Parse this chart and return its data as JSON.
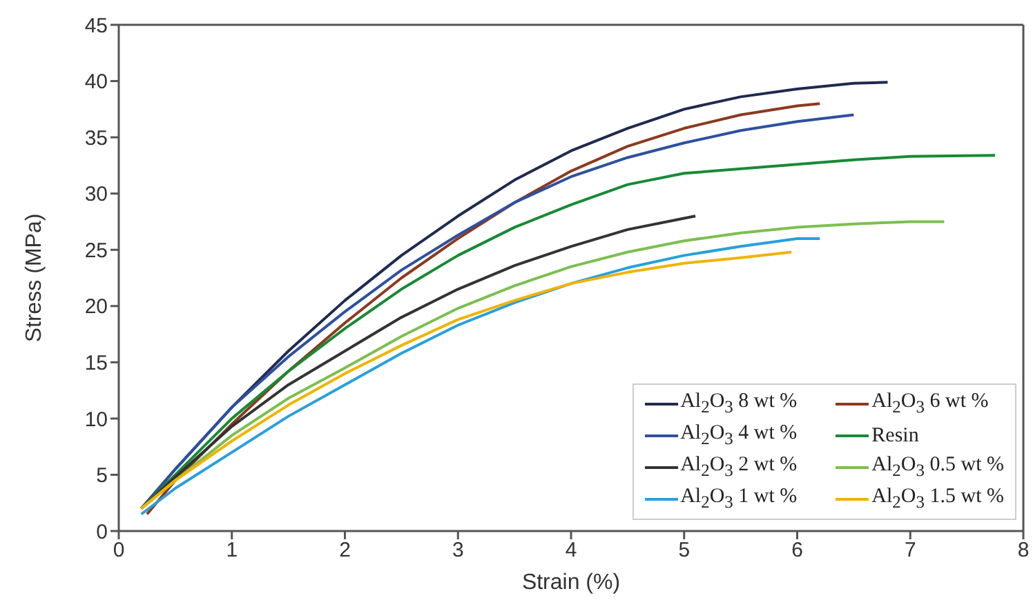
{
  "chart_data": {
    "type": "line",
    "xlabel": "Strain (%)",
    "ylabel": "Stress (MPa)",
    "xlim": [
      0,
      8
    ],
    "xticks": [
      0,
      1,
      2,
      3,
      4,
      5,
      6,
      7,
      8
    ],
    "ylim": [
      0,
      45
    ],
    "yticks": [
      0,
      5,
      10,
      15,
      20,
      25,
      30,
      35,
      40,
      45
    ],
    "grid": false,
    "legend": "bottom right",
    "marker": "none",
    "line_style": "solid",
    "series": [
      {
        "name": "Al$_{2}$O$_{3}$ 8 wt %",
        "color": "#1f2a4f",
        "x": [
          0.2,
          0.5,
          1,
          1.5,
          2,
          2.5,
          3,
          3.5,
          4,
          4.5,
          5,
          5.5,
          6,
          6.5,
          6.8
        ],
        "values": [
          2,
          5.5,
          11,
          16,
          20.5,
          24.5,
          28,
          31.2,
          33.8,
          35.8,
          37.5,
          38.6,
          39.3,
          39.8,
          39.9
        ]
      },
      {
        "name": "Al$_{2}$O$_{3}$ 6 wt %",
        "color": "#8b3a1e",
        "x": [
          0.25,
          0.5,
          1,
          1.5,
          2,
          2.5,
          3,
          3.5,
          4,
          4.5,
          5,
          5.5,
          6,
          6.2
        ],
        "values": [
          1.5,
          4.5,
          9.5,
          14.2,
          18.5,
          22.5,
          26,
          29.2,
          32,
          34.2,
          35.8,
          37,
          37.8,
          38
        ]
      },
      {
        "name": "Al$_{2}$O$_{3}$ 4 wt %",
        "color": "#2e50a0",
        "x": [
          0.2,
          0.5,
          1,
          1.5,
          2,
          2.5,
          3,
          3.5,
          4,
          4.5,
          5,
          5.5,
          6,
          6.5
        ],
        "values": [
          2,
          5.5,
          11,
          15.5,
          19.5,
          23.2,
          26.3,
          29.2,
          31.5,
          33.2,
          34.5,
          35.6,
          36.4,
          37
        ]
      },
      {
        "name": "Resin",
        "color": "#178a35",
        "x": [
          0.2,
          0.5,
          1,
          1.5,
          2,
          2.5,
          3,
          3.5,
          4,
          4.5,
          5,
          5.5,
          6,
          6.5,
          7,
          7.75
        ],
        "values": [
          2,
          5,
          10,
          14.2,
          18,
          21.5,
          24.5,
          27,
          29,
          30.8,
          31.8,
          32.2,
          32.6,
          33,
          33.3,
          33.4
        ]
      },
      {
        "name": "Al$_{2}$O$_{3}$ 2 wt %",
        "color": "#333333",
        "x": [
          0.2,
          0.5,
          1,
          1.5,
          2,
          2.5,
          3,
          3.5,
          4,
          4.5,
          5,
          5.1
        ],
        "values": [
          2,
          4.8,
          9.3,
          13,
          16,
          19,
          21.5,
          23.6,
          25.3,
          26.8,
          27.8,
          28
        ]
      },
      {
        "name": "Al$_{2}$O$_{3}$ 0.5 wt %",
        "color": "#7cbf50",
        "x": [
          0.2,
          0.5,
          1,
          1.5,
          2,
          2.5,
          3,
          3.5,
          4,
          4.5,
          5,
          5.5,
          6,
          6.5,
          7,
          7.3
        ],
        "values": [
          2,
          4.5,
          8.5,
          11.8,
          14.5,
          17.3,
          19.8,
          21.8,
          23.5,
          24.8,
          25.8,
          26.5,
          27,
          27.3,
          27.5,
          27.5
        ]
      },
      {
        "name": "Al$_{2}$O$_{3}$ 1 wt %",
        "color": "#27a0dc",
        "x": [
          0.2,
          0.5,
          1,
          1.5,
          2,
          2.5,
          3,
          3.5,
          4,
          4.5,
          5,
          5.5,
          6,
          6.2
        ],
        "values": [
          1.5,
          3.8,
          7,
          10.2,
          13,
          15.8,
          18.3,
          20.3,
          22,
          23.4,
          24.5,
          25.3,
          26,
          26
        ]
      },
      {
        "name": "Al$_{2}$O$_{3}$ 1.5 wt %",
        "color": "#f0b400",
        "x": [
          0.2,
          0.5,
          1,
          1.5,
          2,
          2.5,
          3,
          3.5,
          4,
          4.5,
          5,
          5.5,
          5.95
        ],
        "values": [
          2,
          4.5,
          8,
          11.2,
          14,
          16.5,
          18.8,
          20.5,
          22,
          23,
          23.8,
          24.3,
          24.8
        ]
      }
    ]
  }
}
